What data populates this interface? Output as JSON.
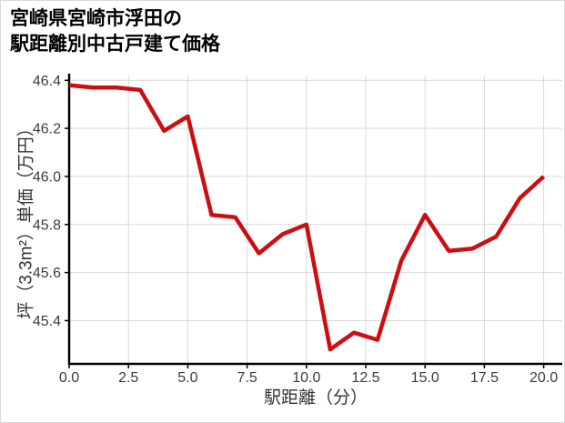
{
  "chart_data": {
    "type": "line",
    "title_lines": [
      "宮崎県宮崎市浮田の",
      "駅距離別中古戸建て価格"
    ],
    "xlabel": "駅距離（分）",
    "ylabel": "坪（3.3m²）単価（万円）",
    "x": [
      0,
      1,
      2,
      3,
      4,
      5,
      6,
      7,
      8,
      9,
      10,
      11,
      12,
      13,
      14,
      15,
      16,
      17,
      18,
      19,
      20
    ],
    "values": [
      46.38,
      46.37,
      46.37,
      46.36,
      46.19,
      46.25,
      45.84,
      45.83,
      45.68,
      45.76,
      45.8,
      45.28,
      45.35,
      45.32,
      45.65,
      45.84,
      45.69,
      45.7,
      45.75,
      45.91,
      46.0
    ],
    "xticks": [
      0,
      2.5,
      5,
      7.5,
      10,
      12.5,
      15,
      17.5,
      20
    ],
    "xtick_labels": [
      "0.0",
      "2.5",
      "5.0",
      "7.5",
      "10.0",
      "12.5",
      "15.0",
      "17.5",
      "20.0"
    ],
    "yticks": [
      45.4,
      45.6,
      45.8,
      46.0,
      46.2,
      46.4
    ],
    "ytick_labels": [
      "45.4",
      "45.6",
      "45.8",
      "46.0",
      "46.2",
      "46.4"
    ],
    "xlim": [
      0,
      20
    ],
    "ylim": [
      45.22,
      46.42
    ],
    "grid": true,
    "legend": null,
    "colors": {
      "line": "#cd0e10",
      "grid": "#d9d9d9",
      "axis": "#000000",
      "tick_label": "#3d3d3d",
      "axis_label": "#333333",
      "title": "#000000",
      "background": "#ffffff"
    }
  }
}
